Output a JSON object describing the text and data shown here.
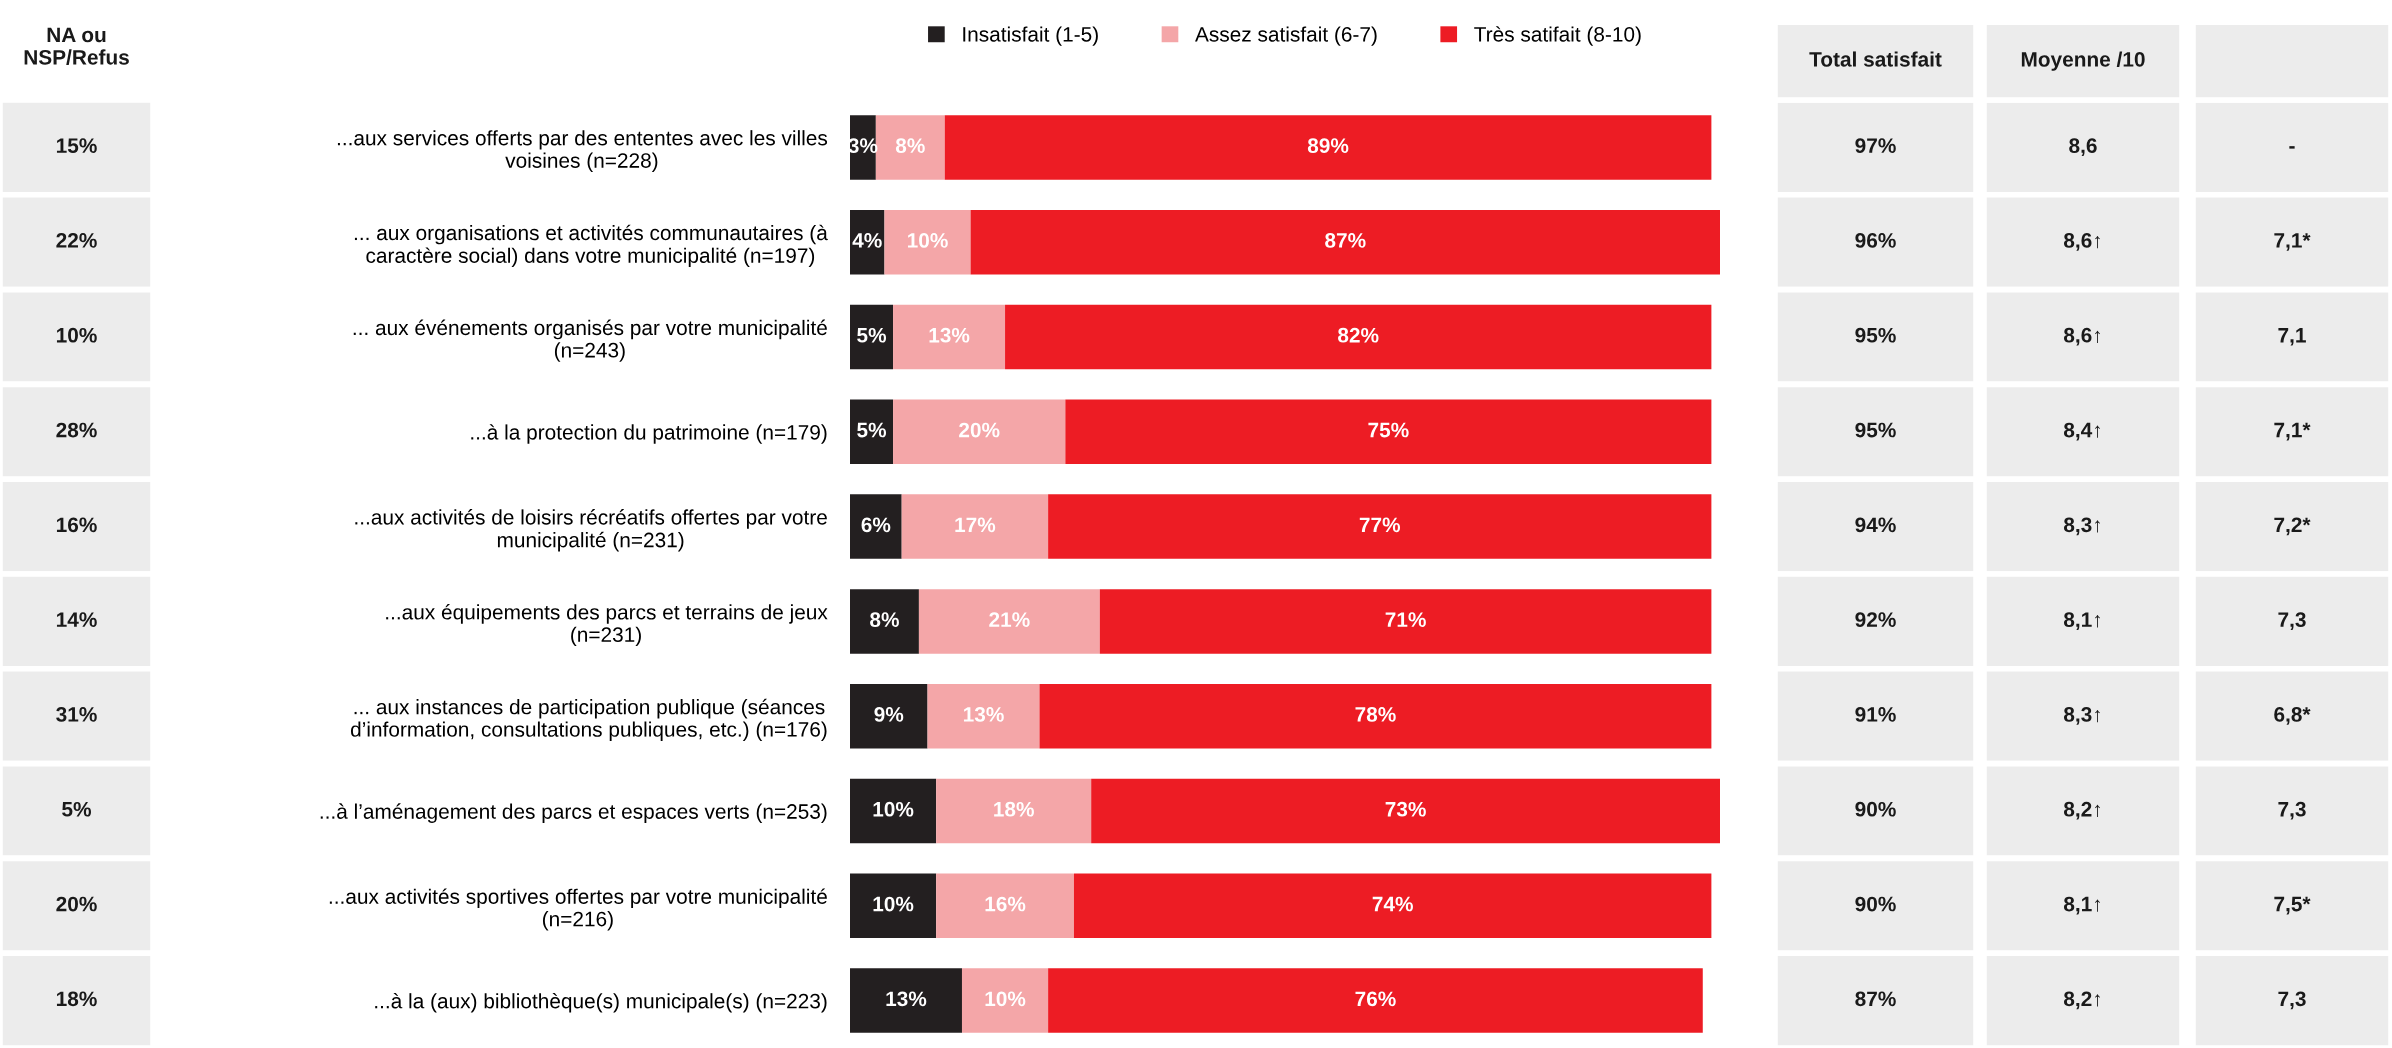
{
  "chart_data": [
    {
      "type": "other",
      "title": "NA ou\nNSP/Refus",
      "annotations": [
        "15%",
        "22%",
        "10%",
        "28%",
        "16%",
        "14%",
        "31%",
        "5%",
        "20%",
        "18%"
      ]
    },
    {
      "type": "bar",
      "orientation": "horizontal",
      "stacked": true,
      "legend": "top",
      "tick_labels": "y",
      "categories": [
        "...aux services offerts par des ententes avec les villes\nvoisines (n=228)",
        "... aux organisations et activités communautaires (à\ncaractère social) dans votre municipalité (n=197)",
        "... aux événements organisés par votre municipalité\n(n=243)",
        "...à la protection du patrimoine (n=179)",
        "...aux activités de loisirs récréatifs offertes par votre\nmunicipalité (n=231)",
        "...aux équipements des parcs et terrains de jeux\n(n=231)",
        "... aux instances de participation publique (séances\nd’information, consultations publiques, etc.) (n=176)",
        "...à l’aménagement des parcs et espaces verts (n=253)",
        "...aux activités sportives offertes par votre municipalité\n(n=216)",
        "...à la (aux) bibliothèque(s) municipale(s) (n=223)"
      ],
      "series": [
        {
          "name": "Insatisfait (1-5)",
          "color": "#231f20",
          "values": [
            3,
            4,
            5,
            5,
            6,
            8,
            9,
            10,
            10,
            13
          ],
          "value_labels": [
            "3%",
            "4%",
            "5%",
            "5%",
            "6%",
            "8%",
            "9%",
            "10%",
            "10%",
            "13%"
          ]
        },
        {
          "name": "Assez satisfait (6-7)",
          "color": "#f4a6a8",
          "values": [
            8,
            10,
            13,
            20,
            17,
            21,
            13,
            18,
            16,
            10
          ],
          "value_labels": [
            "8%",
            "10%",
            "13%",
            "20%",
            "17%",
            "21%",
            "13%",
            "18%",
            "16%",
            "10%"
          ]
        },
        {
          "name": "Très satifait (8-10)",
          "color": "#ed1c24",
          "values": [
            89,
            87,
            82,
            75,
            77,
            71,
            78,
            73,
            74,
            76
          ],
          "value_labels": [
            "89%",
            "87%",
            "82%",
            "75%",
            "77%",
            "71%",
            "78%",
            "73%",
            "74%",
            "76%"
          ]
        }
      ]
    },
    {
      "type": "other",
      "title": "Total satisfait",
      "annotations": [
        "97%",
        "96%",
        "95%",
        "95%",
        "94%",
        "92%",
        "91%",
        "90%",
        "90%",
        "87%"
      ]
    },
    {
      "type": "other",
      "title": "Moyenne /10",
      "annotations": [
        "8,6",
        "8,6↑",
        "8,6↑",
        "8,4↑",
        "8,3↑",
        "8,1↑",
        "8,3↑",
        "8,2↑",
        "8,1↑",
        "8,2↑"
      ]
    },
    {
      "type": "other",
      "annotations": [
        "-",
        "7,1*",
        "7,1",
        "7,1*",
        "7,2*",
        "7,3",
        "6,8*",
        "7,3",
        "7,5*",
        "7,3"
      ]
    }
  ]
}
